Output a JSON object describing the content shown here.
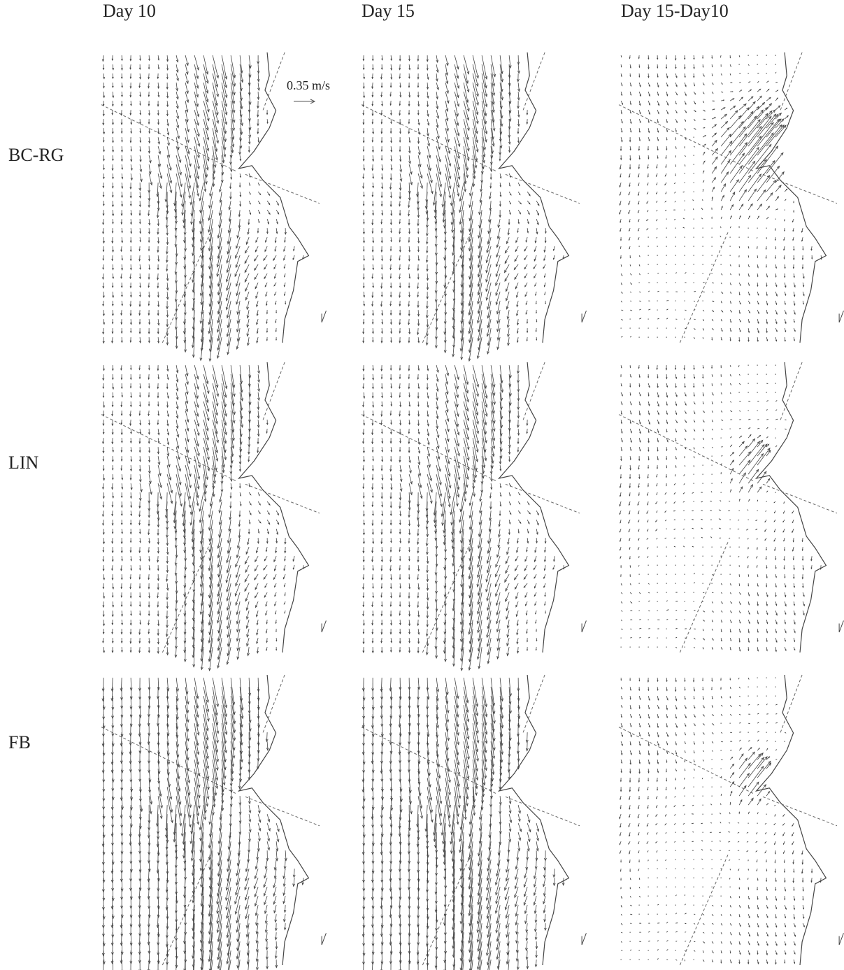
{
  "columns": [
    "Day 10",
    "Day 15",
    "Day 15-Day10"
  ],
  "rows": [
    "BC-RG",
    "LIN",
    "FB"
  ],
  "scale_label": "0.35 m/s"
}
